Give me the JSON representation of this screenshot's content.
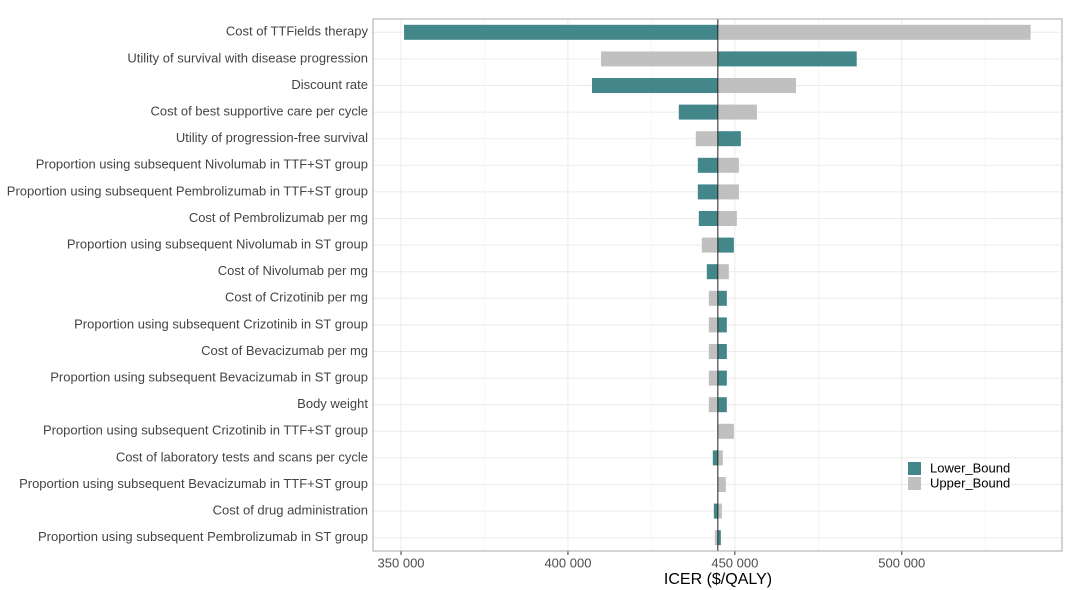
{
  "chart_data": {
    "type": "tornado",
    "xlabel": "ICER ($/QALY)",
    "categories": [
      "Cost of TTFields therapy",
      "Utility of survival with disease progression",
      "Discount rate",
      "Cost of best supportive care per cycle",
      "Utility of progression-free survival",
      "Proportion using subsequent Nivolumab in TTF+ST group",
      "Proportion using subsequent Pembrolizumab in TTF+ST group",
      "Cost of Pembrolizumab per mg",
      "Proportion using subsequent Nivolumab in ST group",
      "Cost of Nivolumab per mg",
      "Cost of Crizotinib per mg",
      "Proportion using subsequent Crizotinib in ST group",
      "Cost of Bevacizumab per mg",
      "Proportion using subsequent Bevacizumab in ST group",
      "Body weight",
      "Proportion using subsequent Crizotinib in TTF+ST group",
      "Cost of laboratory tests and scans per cycle",
      "Proportion using subsequent Bevacizumab in TTF+ST group",
      "Cost of drug administration",
      "Proportion using subsequent Pembrolizumab in ST group"
    ],
    "base_value": 444900,
    "series": [
      {
        "name": "Lower_Bound",
        "color": "#43878a",
        "values": [
          350900,
          486500,
          407200,
          433200,
          451800,
          438900,
          438900,
          439200,
          449700,
          441600,
          447600,
          447600,
          447600,
          447600,
          447600,
          444900,
          443400,
          444900,
          443700,
          445800
        ]
      },
      {
        "name": "Upper_Bound",
        "color": "#c0c0c0",
        "values": [
          538600,
          409900,
          468300,
          456600,
          438300,
          451200,
          451200,
          450600,
          440100,
          448200,
          442200,
          442200,
          442200,
          442200,
          442200,
          449700,
          446400,
          447300,
          446100,
          444000
        ]
      }
    ],
    "xlim": [
      341600,
      548000
    ],
    "xticks": [
      {
        "value": 350000,
        "label": "350 000"
      },
      {
        "value": 400000,
        "label": "400 000"
      },
      {
        "value": 450000,
        "label": "450 000"
      },
      {
        "value": 500000,
        "label": "500 000"
      }
    ],
    "grid": true,
    "legend": "right"
  }
}
